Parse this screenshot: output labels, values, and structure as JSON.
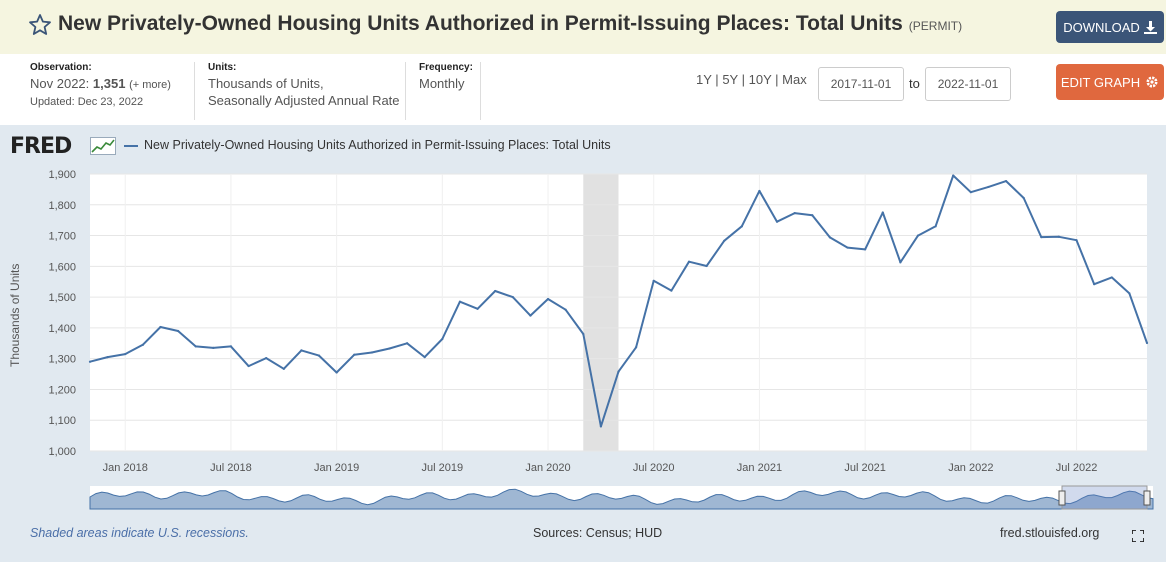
{
  "header": {
    "title": "New Privately-Owned Housing Units Authorized in Permit-Issuing Places: Total Units",
    "series_id": "(PERMIT)",
    "download_label": "DOWNLOAD",
    "edit_label": "EDIT GRAPH"
  },
  "meta": {
    "observation_label": "Observation:",
    "observation_date": "Nov 2022:",
    "observation_value": "1,351",
    "observation_more": "(+ more)",
    "updated": "Updated: Dec 23, 2022",
    "units_label": "Units:",
    "units_line1": "Thousands of Units,",
    "units_line2": "Seasonally Adjusted Annual Rate",
    "frequency_label": "Frequency:",
    "frequency_value": "Monthly"
  },
  "ranges": {
    "r1": "1Y",
    "r2": "5Y",
    "r3": "10Y",
    "r4": "Max",
    "sep": "|"
  },
  "dates": {
    "start": "2017-11-01",
    "to": "to",
    "end": "2022-11-01"
  },
  "fred_logo": "FRED",
  "legend_text": "New Privately-Owned Housing Units Authorized in Permit-Issuing Places: Total Units",
  "footer": {
    "recession_note": "Shaded areas indicate U.S. recessions.",
    "sources": "Sources: Census; HUD",
    "site": "fred.stlouisfed.org"
  },
  "colors": {
    "series": "#4572a7",
    "recession": "#e1e1e1",
    "download": "#3b5578",
    "edit": "#e0683e"
  },
  "chart_data": {
    "type": "line",
    "title": "",
    "ylabel": "Thousands of Units",
    "xlabel": "",
    "ylim": [
      1000,
      1900
    ],
    "yticks": [
      1000,
      1100,
      1200,
      1300,
      1400,
      1500,
      1600,
      1700,
      1800,
      1900
    ],
    "ytick_labels": [
      "1,000",
      "1,100",
      "1,200",
      "1,300",
      "1,400",
      "1,500",
      "1,600",
      "1,700",
      "1,800",
      "1,900"
    ],
    "xtick_labels": [
      "Jan 2018",
      "Jul 2018",
      "Jan 2019",
      "Jul 2019",
      "Jan 2020",
      "Jul 2020",
      "Jan 2021",
      "Jul 2021",
      "Jan 2022",
      "Jul 2022"
    ],
    "xtick_months": [
      "2018-01",
      "2018-07",
      "2019-01",
      "2019-07",
      "2020-01",
      "2020-07",
      "2021-01",
      "2021-07",
      "2022-01",
      "2022-07"
    ],
    "recessions": [
      {
        "start": "2020-03",
        "end": "2020-04"
      }
    ],
    "grid": true,
    "legend_position": "top-left",
    "series": [
      {
        "name": "New Privately-Owned Housing Units Authorized in Permit-Issuing Places: Total Units",
        "x": [
          "2017-11",
          "2017-12",
          "2018-01",
          "2018-02",
          "2018-03",
          "2018-04",
          "2018-05",
          "2018-06",
          "2018-07",
          "2018-08",
          "2018-09",
          "2018-10",
          "2018-11",
          "2018-12",
          "2019-01",
          "2019-02",
          "2019-03",
          "2019-04",
          "2019-05",
          "2019-06",
          "2019-07",
          "2019-08",
          "2019-09",
          "2019-10",
          "2019-11",
          "2019-12",
          "2020-01",
          "2020-02",
          "2020-03",
          "2020-04",
          "2020-05",
          "2020-06",
          "2020-07",
          "2020-08",
          "2020-09",
          "2020-10",
          "2020-11",
          "2020-12",
          "2021-01",
          "2021-02",
          "2021-03",
          "2021-04",
          "2021-05",
          "2021-06",
          "2021-07",
          "2021-08",
          "2021-09",
          "2021-10",
          "2021-11",
          "2021-12",
          "2022-01",
          "2022-02",
          "2022-03",
          "2022-04",
          "2022-05",
          "2022-06",
          "2022-07",
          "2022-08",
          "2022-09",
          "2022-10",
          "2022-11"
        ],
        "values": [
          1290,
          1305,
          1315,
          1345,
          1403,
          1390,
          1340,
          1335,
          1340,
          1276,
          1302,
          1267,
          1327,
          1310,
          1255,
          1313,
          1320,
          1333,
          1350,
          1305,
          1364,
          1485,
          1462,
          1520,
          1500,
          1440,
          1494,
          1459,
          1380,
          1080,
          1258,
          1337,
          1553,
          1521,
          1615,
          1601,
          1683,
          1730,
          1845,
          1745,
          1773,
          1766,
          1694,
          1661,
          1655,
          1775,
          1613,
          1700,
          1730,
          1895,
          1841,
          1858,
          1877,
          1822,
          1695,
          1696,
          1685,
          1542,
          1564,
          1512,
          1351
        ]
      }
    ]
  }
}
